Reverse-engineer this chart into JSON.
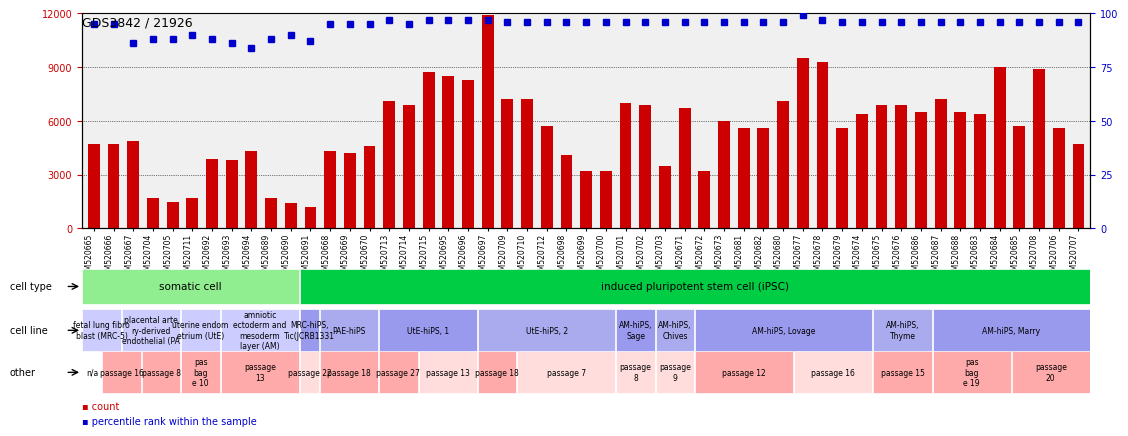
{
  "title": "GDS3842 / 21926",
  "gsm_ids": [
    "GSM520665",
    "GSM520666",
    "GSM520667",
    "GSM520704",
    "GSM520705",
    "GSM520711",
    "GSM520692",
    "GSM520693",
    "GSM520694",
    "GSM520689",
    "GSM520690",
    "GSM520691",
    "GSM520668",
    "GSM520669",
    "GSM520670",
    "GSM520713",
    "GSM520714",
    "GSM520715",
    "GSM520695",
    "GSM520696",
    "GSM520697",
    "GSM520709",
    "GSM520710",
    "GSM520712",
    "GSM520698",
    "GSM520699",
    "GSM520700",
    "GSM520701",
    "GSM520702",
    "GSM520703",
    "GSM520671",
    "GSM520672",
    "GSM520673",
    "GSM520681",
    "GSM520682",
    "GSM520680",
    "GSM520677",
    "GSM520678",
    "GSM520679",
    "GSM520674",
    "GSM520675",
    "GSM520676",
    "GSM520686",
    "GSM520687",
    "GSM520688",
    "GSM520683",
    "GSM520684",
    "GSM520685",
    "GSM520708",
    "GSM520706",
    "GSM520707"
  ],
  "counts": [
    4700,
    4700,
    4900,
    1700,
    1500,
    1700,
    3900,
    3800,
    4300,
    1700,
    1400,
    1200,
    4300,
    4200,
    4600,
    7100,
    6900,
    8700,
    8500,
    8300,
    11900,
    7200,
    7200,
    5700,
    4100,
    3200,
    3200,
    7000,
    6900,
    3500,
    6700,
    3200,
    6000,
    5600,
    5600,
    7100,
    9500,
    9300,
    5600,
    6400,
    6900,
    6900,
    6500,
    7200,
    6500,
    6400,
    9000,
    5700,
    8900,
    5600,
    4700
  ],
  "percentiles": [
    95,
    95,
    86,
    88,
    88,
    90,
    88,
    86,
    84,
    88,
    90,
    87,
    95,
    95,
    95,
    97,
    95,
    97,
    97,
    97,
    97,
    96,
    96,
    96,
    96,
    96,
    96,
    96,
    96,
    96,
    96,
    96,
    96,
    96,
    96,
    96,
    99,
    97,
    96,
    96,
    96,
    96,
    96,
    96,
    96,
    96,
    96,
    96,
    96,
    96,
    96
  ],
  "bar_color": "#cc0000",
  "dot_color": "#0000cc",
  "ylim_left": [
    0,
    12000
  ],
  "ylim_right": [
    0,
    100
  ],
  "yticks_left": [
    0,
    3000,
    6000,
    9000,
    12000
  ],
  "yticks_right": [
    0,
    25,
    50,
    75,
    100
  ],
  "cell_type_regions": [
    {
      "label": "somatic cell",
      "start": 0,
      "end": 11,
      "color": "#90ee90"
    },
    {
      "label": "induced pluripotent stem cell (iPSC)",
      "start": 11,
      "end": 51,
      "color": "#00cc44"
    }
  ],
  "cell_line_regions": [
    {
      "label": "fetal lung fibro\nblast (MRC-5)",
      "start": 0,
      "end": 2,
      "color": "#ccccff"
    },
    {
      "label": "placental arte\nry-derived\nendothelial (PA",
      "start": 2,
      "end": 5,
      "color": "#ccccff"
    },
    {
      "label": "uterine endom\netrium (UtE)",
      "start": 5,
      "end": 7,
      "color": "#ccccff"
    },
    {
      "label": "amniotic\nectoderm and\nmesoderm\nlayer (AM)",
      "start": 7,
      "end": 11,
      "color": "#ccccff"
    },
    {
      "label": "MRC-hiPS,\nTic(JCRB1331",
      "start": 11,
      "end": 12,
      "color": "#9999ee"
    },
    {
      "label": "PAE-hiPS",
      "start": 12,
      "end": 15,
      "color": "#aaaaee"
    },
    {
      "label": "UtE-hiPS, 1",
      "start": 15,
      "end": 20,
      "color": "#9999ee"
    },
    {
      "label": "UtE-hiPS, 2",
      "start": 20,
      "end": 27,
      "color": "#aaaaee"
    },
    {
      "label": "AM-hiPS,\nSage",
      "start": 27,
      "end": 29,
      "color": "#9999ee"
    },
    {
      "label": "AM-hiPS,\nChives",
      "start": 29,
      "end": 31,
      "color": "#aaaaee"
    },
    {
      "label": "AM-hiPS, Lovage",
      "start": 31,
      "end": 40,
      "color": "#9999ee"
    },
    {
      "label": "AM-hiPS,\nThyme",
      "start": 40,
      "end": 43,
      "color": "#aaaaee"
    },
    {
      "label": "AM-hiPS, Marry",
      "start": 43,
      "end": 51,
      "color": "#9999ee"
    }
  ],
  "other_regions": [
    {
      "label": "n/a",
      "start": 0,
      "end": 1,
      "color": "#ffffff"
    },
    {
      "label": "passage 16",
      "start": 1,
      "end": 3,
      "color": "#ffaaaa"
    },
    {
      "label": "passage 8",
      "start": 3,
      "end": 5,
      "color": "#ffaaaa"
    },
    {
      "label": "pas\nbag\ne 10",
      "start": 5,
      "end": 7,
      "color": "#ffaaaa"
    },
    {
      "label": "passage\n13",
      "start": 7,
      "end": 11,
      "color": "#ffaaaa"
    },
    {
      "label": "passage 22",
      "start": 11,
      "end": 12,
      "color": "#ffdddd"
    },
    {
      "label": "passage 18",
      "start": 12,
      "end": 15,
      "color": "#ffaaaa"
    },
    {
      "label": "passage 27",
      "start": 15,
      "end": 17,
      "color": "#ffaaaa"
    },
    {
      "label": "passage 13",
      "start": 17,
      "end": 20,
      "color": "#ffdddd"
    },
    {
      "label": "passage 18",
      "start": 20,
      "end": 22,
      "color": "#ffaaaa"
    },
    {
      "label": "passage 7",
      "start": 22,
      "end": 27,
      "color": "#ffdddd"
    },
    {
      "label": "passage\n8",
      "start": 27,
      "end": 29,
      "color": "#ffdddd"
    },
    {
      "label": "passage\n9",
      "start": 29,
      "end": 31,
      "color": "#ffdddd"
    },
    {
      "label": "passage 12",
      "start": 31,
      "end": 36,
      "color": "#ffaaaa"
    },
    {
      "label": "passage 16",
      "start": 36,
      "end": 40,
      "color": "#ffdddd"
    },
    {
      "label": "passage 15",
      "start": 40,
      "end": 43,
      "color": "#ffaaaa"
    },
    {
      "label": "pas\nbag\ne 19",
      "start": 43,
      "end": 47,
      "color": "#ffaaaa"
    },
    {
      "label": "passage\n20",
      "start": 47,
      "end": 51,
      "color": "#ffaaaa"
    }
  ],
  "row_labels": [
    "cell type",
    "cell line",
    "other"
  ],
  "legend_items": [
    {
      "label": "count",
      "color": "#cc0000",
      "marker": "s"
    },
    {
      "label": "percentile rank within the sample",
      "color": "#0000cc",
      "marker": "s"
    }
  ]
}
